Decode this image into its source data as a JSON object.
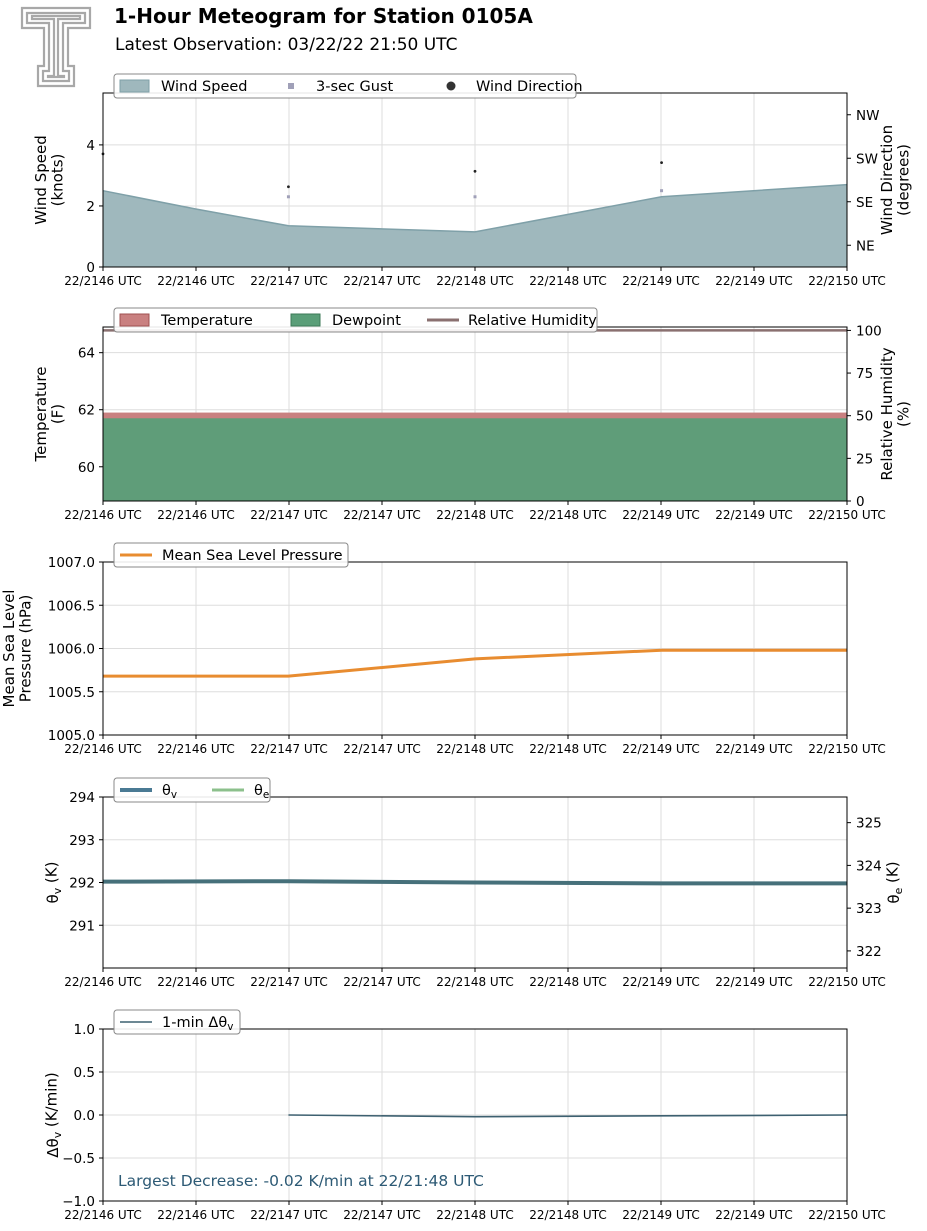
{
  "header": {
    "title": "1-Hour Meteogram for Station 0105A",
    "subtitle": "Latest Observation: 03/22/22 21:50 UTC",
    "logo_icon": "texas-tech-double-t-logo"
  },
  "colors": {
    "wind_speed": "#9fb8bd",
    "wind_speed_line": "#7fa0a8",
    "gust": "#a0a0b8",
    "direction": "#222222",
    "temperature": "#c98080",
    "dewpoint": "#5a9e78",
    "humidity": "#8a7070",
    "pressure": "#e88c30",
    "theta_v": "#4a7a94",
    "theta_e": "#8cc08c",
    "dtheta": "#3d6070",
    "annotation": "#2d5a75",
    "grid": "#dddddd",
    "logo": "#a8a8a8"
  },
  "x_tick_labels": [
    "22/2146 UTC",
    "22/2146 UTC",
    "22/2147 UTC",
    "22/2147 UTC",
    "22/2148 UTC",
    "22/2148 UTC",
    "22/2149 UTC",
    "22/2149 UTC",
    "22/2150 UTC"
  ],
  "chart_data": [
    {
      "type": "area",
      "id": "wind",
      "ylabel": "Wind Speed\n(knots)",
      "y2label": "Wind Direction\n(degrees)",
      "ylim": [
        0,
        5.7
      ],
      "yticks": [
        0,
        2,
        4
      ],
      "y2lim": [
        0,
        360
      ],
      "y2ticks": [
        {
          "value": 45,
          "label": "NE"
        },
        {
          "value": 135,
          "label": "SE"
        },
        {
          "value": 225,
          "label": "SW"
        },
        {
          "value": 315,
          "label": "NW"
        }
      ],
      "legend": [
        "Wind Speed",
        "3-sec Gust",
        "Wind Direction"
      ],
      "x": [
        21.7667,
        21.7833,
        21.8,
        21.8167,
        21.8333
      ],
      "series": [
        {
          "name": "Wind Speed",
          "values": [
            2.5,
            1.9,
            1.35,
            1.15,
            2.3,
            2.7
          ],
          "x": [
            21.7667,
            21.775,
            21.7833,
            21.8,
            21.8167,
            21.8333
          ]
        },
        {
          "name": "3-sec Gust",
          "x": [
            21.7833,
            21.8,
            21.8167
          ],
          "values": [
            2.3,
            2.3,
            2.5
          ]
        },
        {
          "name": "Wind Direction",
          "x": [
            21.7667,
            21.7833,
            21.8,
            21.8167
          ],
          "values": [
            234,
            166,
            198,
            216
          ]
        }
      ],
      "grid": true
    },
    {
      "type": "area",
      "id": "temperature",
      "ylabel": "Temperature\n(F)",
      "y2label": "Relative Humidity\n(%)",
      "ylim": [
        58.8,
        64.9
      ],
      "yticks": [
        60,
        62,
        64
      ],
      "y2lim": [
        0,
        102
      ],
      "y2ticks": [
        0,
        25,
        50,
        75,
        100
      ],
      "legend": [
        "Temperature",
        "Dewpoint",
        "Relative Humidity"
      ],
      "series": [
        {
          "name": "Temperature",
          "values": [
            61.9,
            61.9,
            61.9,
            61.9,
            61.9
          ]
        },
        {
          "name": "Dewpoint",
          "values": [
            61.7,
            61.7,
            61.7,
            61.7,
            61.7
          ]
        },
        {
          "name": "Relative Humidity",
          "values": [
            100,
            100,
            100,
            100,
            100
          ]
        }
      ],
      "grid": true
    },
    {
      "type": "line",
      "id": "pressure",
      "ylabel": "Mean Sea Level\nPressure (hPa)",
      "ylim": [
        1005.0,
        1007.0
      ],
      "yticks": [
        1005.0,
        1005.5,
        1006.0,
        1006.5,
        1007.0
      ],
      "legend": [
        "Mean Sea Level Pressure"
      ],
      "series": [
        {
          "name": "Mean Sea Level Pressure",
          "x": [
            21.7667,
            21.7833,
            21.8,
            21.8167,
            21.8333
          ],
          "values": [
            1005.68,
            1005.68,
            1005.88,
            1005.98,
            1005.98
          ]
        }
      ],
      "grid": true
    },
    {
      "type": "line",
      "id": "theta",
      "ylabel": "θv (K)",
      "y2label": "θe (K)",
      "ylim": [
        290.0,
        294.0
      ],
      "yticks": [
        291,
        292,
        293,
        294
      ],
      "y2lim": [
        321.6,
        325.6
      ],
      "y2ticks": [
        322,
        323,
        324,
        325
      ],
      "legend": [
        "θv",
        "θe"
      ],
      "series": [
        {
          "name": "θv",
          "x": [
            21.7667,
            21.7833,
            21.8,
            21.8167,
            21.8333
          ],
          "values": [
            292.02,
            292.03,
            292.0,
            291.98,
            291.98
          ]
        },
        {
          "name": "θe",
          "x": [
            21.7667,
            21.7833,
            21.8,
            21.8167,
            21.8333
          ],
          "values": [
            323.62,
            323.63,
            323.6,
            323.58,
            323.58
          ]
        }
      ],
      "grid": true
    },
    {
      "type": "line",
      "id": "dtheta",
      "ylabel": "Δθv (K/min)",
      "ylim": [
        -1.0,
        1.0
      ],
      "yticks": [
        -1.0,
        -0.5,
        0.0,
        0.5,
        1.0
      ],
      "legend": [
        "1-min Δθv"
      ],
      "annotation": "Largest Decrease: -0.02 K/min at 22/21:48 UTC",
      "series": [
        {
          "name": "1-min Δθv",
          "x": [
            21.7833,
            21.8,
            21.8167,
            21.8333
          ],
          "values": [
            0.0,
            -0.02,
            -0.01,
            0.0
          ]
        }
      ],
      "grid": true
    }
  ]
}
